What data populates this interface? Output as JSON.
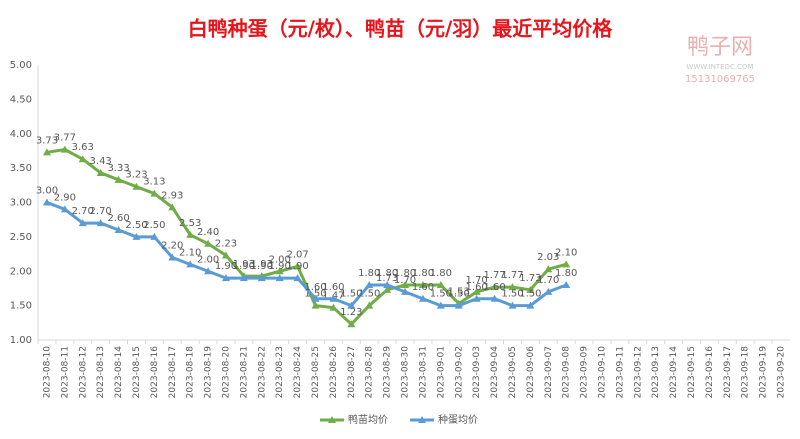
{
  "chart_data": {
    "type": "line",
    "title": "白鸭种蛋（元/枚）、鸭苗（元/羽）最近平均价格",
    "watermark": {
      "name": "鸭子网",
      "url": "WWW.INTEDC.COM",
      "phone": "15131069765"
    },
    "categories": [
      "2023-08-10",
      "2023-08-11",
      "2023-08-12",
      "2023-08-13",
      "2023-08-14",
      "2023-08-15",
      "2023-08-16",
      "2023-08-17",
      "2023-08-18",
      "2023-08-19",
      "2023-08-20",
      "2023-08-21",
      "2023-08-22",
      "2023-08-23",
      "2023-08-24",
      "2023-08-25",
      "2023-08-26",
      "2023-08-27",
      "2023-08-28",
      "2023-08-29",
      "2023-08-30",
      "2023-08-31",
      "2023-09-01",
      "2023-09-02",
      "2023-09-03",
      "2023-09-04",
      "2023-09-05",
      "2023-09-06",
      "2023-09-07",
      "2023-09-08",
      "2023-09-09",
      "2023-09-10",
      "2023-09-11",
      "2023-09-12",
      "2023-09-13",
      "2023-09-14",
      "2023-09-15",
      "2023-09-16",
      "2023-09-17",
      "2023-09-18",
      "2023-09-19",
      "2023-09-20"
    ],
    "series": [
      {
        "name": "鸭苗均价",
        "color": "#70ad47",
        "values": [
          3.73,
          3.77,
          3.63,
          3.43,
          3.33,
          3.23,
          3.13,
          2.93,
          2.53,
          2.4,
          2.23,
          1.93,
          1.93,
          2.0,
          2.07,
          1.5,
          1.47,
          1.23,
          1.5,
          1.73,
          1.8,
          1.8,
          1.8,
          1.53,
          1.7,
          1.77,
          1.77,
          1.73,
          2.03,
          2.1,
          null,
          null,
          null,
          null,
          null,
          null,
          null,
          null,
          null,
          null,
          null,
          null
        ],
        "value_labels": [
          "3.73",
          "3.77",
          "3.63",
          "3.43",
          "3.33",
          "3.23",
          "3.13",
          "2.93",
          "2.53",
          "2.40",
          "2.23",
          "1.93",
          "1.93",
          "2.00",
          "2.07",
          "1.50",
          "1.47",
          "1.23",
          "1.50",
          "1.73",
          "1.80",
          "1.80",
          "1.80",
          "1.53",
          "1.70",
          "1.77",
          "1.77",
          "1.73",
          "2.03",
          "2.10",
          null,
          null,
          null,
          null,
          null,
          null,
          null,
          null,
          null,
          null,
          null,
          null
        ]
      },
      {
        "name": "种蛋均价",
        "color": "#5b9bd5",
        "values": [
          3.0,
          2.9,
          2.7,
          2.7,
          2.6,
          2.5,
          2.5,
          2.2,
          2.1,
          2.0,
          1.9,
          1.9,
          1.9,
          1.9,
          1.9,
          1.6,
          1.6,
          1.5,
          1.8,
          1.8,
          1.7,
          1.6,
          1.5,
          1.5,
          1.6,
          1.6,
          1.5,
          1.5,
          1.7,
          1.8,
          null,
          null,
          null,
          null,
          null,
          null,
          null,
          null,
          null,
          null,
          null,
          null
        ],
        "value_labels": [
          "3.00",
          "2.90",
          "2.70",
          "2.70",
          "2.60",
          "2.50",
          "2.50",
          "2.20",
          "2.10",
          "2.00",
          "1.90",
          "1.90",
          "1.90",
          "1.90",
          "1.90",
          "1.60",
          "1.60",
          "1.50",
          "1.80",
          "1.80",
          "1.70",
          "1.60",
          "1.50",
          "1.50",
          "1.60",
          "1.60",
          "1.50",
          "1.50",
          "1.70",
          "1.80",
          null,
          null,
          null,
          null,
          null,
          null,
          null,
          null,
          null,
          null,
          null,
          null
        ]
      }
    ],
    "ylim": [
      1,
      5
    ],
    "yticks": [
      {
        "value": 1,
        "label": "1.00"
      },
      {
        "value": 1.5,
        "label": "1.50"
      },
      {
        "value": 2,
        "label": "2.00"
      },
      {
        "value": 2.5,
        "label": "2.50"
      },
      {
        "value": 3,
        "label": "3.00"
      },
      {
        "value": 3.5,
        "label": "3.50"
      },
      {
        "value": 4,
        "label": "4.00"
      },
      {
        "value": 4.5,
        "label": "4.50"
      },
      {
        "value": 5,
        "label": "5.00"
      }
    ],
    "grid": false,
    "legend": "bottom"
  }
}
